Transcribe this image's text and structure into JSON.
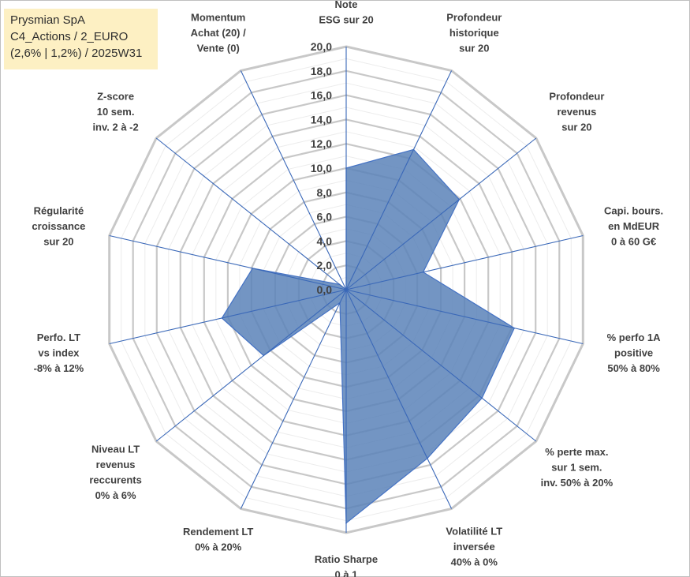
{
  "header": {
    "lines": [
      "Prysmian SpA",
      "C4_Actions / 2_EURO",
      "(2,6% | 1,2%) / 2025W31"
    ]
  },
  "chart_data": {
    "type": "radar",
    "title": "",
    "rmin": 0,
    "rmax": 20,
    "tick_step": 2,
    "ticks": [
      "0,0",
      "2,0",
      "4,0",
      "6,0",
      "8,0",
      "10,0",
      "12,0",
      "14,0",
      "16,0",
      "18,0",
      "20,0"
    ],
    "axes": [
      {
        "label": [
          "Note",
          "ESG sur 20"
        ],
        "value": 10.0
      },
      {
        "label": [
          "Profondeur",
          "historique",
          "sur 20"
        ],
        "value": 12.8
      },
      {
        "label": [
          "Profondeur",
          "revenus",
          "sur 20"
        ],
        "value": 11.9
      },
      {
        "label": [
          "Capi. bours.",
          "en MdEUR",
          "0 à 60 G€"
        ],
        "value": 6.5
      },
      {
        "label": [
          "% perfo 1A",
          "positive",
          "50% à 80%"
        ],
        "value": 14.2
      },
      {
        "label": [
          "% perte max.",
          "sur 1 sem.",
          "inv. 50% à 20%"
        ],
        "value": 14.3
      },
      {
        "label": [
          "Volatilité LT",
          "inversée",
          "40% à 0%"
        ],
        "value": 15.4
      },
      {
        "label": [
          "Ratio Sharpe",
          "0 à 1"
        ],
        "value": 19.2
      },
      {
        "label": [
          "Rendement LT",
          "0% à 20%"
        ],
        "value": 1.2
      },
      {
        "label": [
          "Niveau LT",
          "revenus",
          "reccurents",
          "0% à 6%"
        ],
        "value": 8.7
      },
      {
        "label": [
          "Perfo. LT",
          "vs index",
          "-8% à 12%"
        ],
        "value": 10.5
      },
      {
        "label": [
          "Régularité",
          "croissance",
          "sur 20"
        ],
        "value": 7.9
      },
      {
        "label": [
          "Z-score",
          "10 sem.",
          "inv. 2 à -2"
        ],
        "value": 0.7
      },
      {
        "label": [
          "Momentum",
          "Achat (20) /",
          "Vente (0)"
        ],
        "value": 0.0
      }
    ],
    "colors": {
      "fill": "#5b83b8",
      "stroke": "#4472c4",
      "grid_major": "#c8c8c8",
      "grid_minor": "#ececec",
      "spoke": "#3a68b8"
    },
    "grid": true,
    "legend": "none"
  }
}
